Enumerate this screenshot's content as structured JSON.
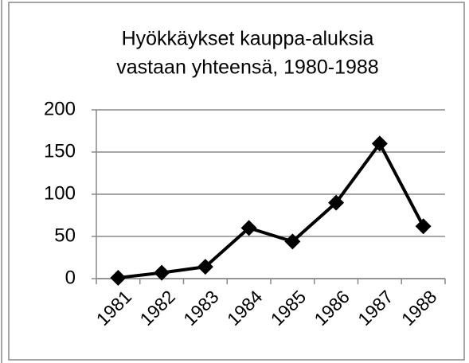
{
  "chart_data": {
    "type": "line",
    "title": [
      "Hyökkäykset kauppa-aluksia",
      "vastaan yhteensä, 1980-1988"
    ],
    "categories": [
      "1981",
      "1982",
      "1983",
      "1984",
      "1985",
      "1986",
      "1987",
      "1988"
    ],
    "values": [
      1,
      7,
      14,
      60,
      44,
      90,
      160,
      62
    ],
    "color": "#000000",
    "ylim": [
      0,
      200
    ],
    "yticks": [
      0,
      50,
      100,
      150,
      200
    ],
    "grid": true
  }
}
